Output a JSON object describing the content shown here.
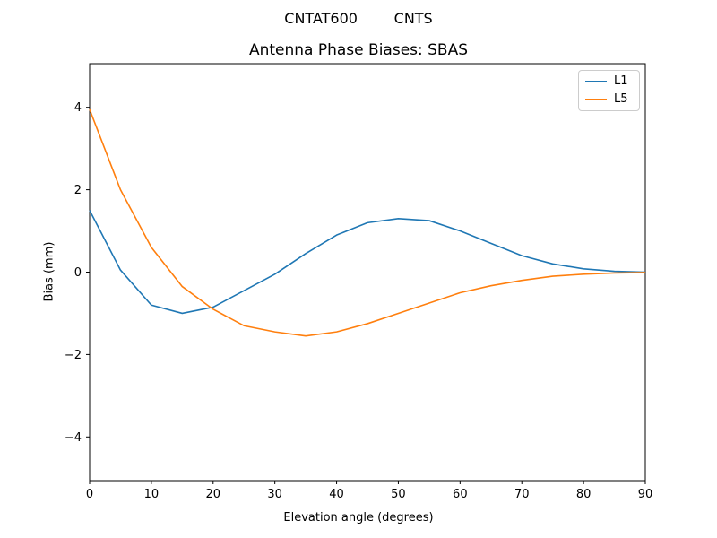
{
  "figure": {
    "suptitle": "CNTAT600        CNTS",
    "background": "#ffffff",
    "spine_color": "#000000"
  },
  "chart_data": {
    "type": "line",
    "title": "Antenna Phase Biases: SBAS",
    "xlabel": "Elevation angle (degrees)",
    "ylabel": "Bias (mm)",
    "xlim": [
      0,
      90
    ],
    "ylim": [
      -5.06,
      5.06
    ],
    "xticks": [
      0,
      10,
      20,
      30,
      40,
      50,
      60,
      70,
      80,
      90
    ],
    "yticks": [
      -4,
      -2,
      0,
      2,
      4
    ],
    "grid": false,
    "legend_position": "upper right",
    "x": [
      0,
      5,
      10,
      15,
      20,
      25,
      30,
      35,
      40,
      45,
      50,
      55,
      60,
      65,
      70,
      75,
      80,
      85,
      90
    ],
    "series": [
      {
        "name": "L1",
        "color": "#1f77b4",
        "values": [
          1.5,
          0.05,
          -0.8,
          -1.0,
          -0.85,
          -0.45,
          -0.05,
          0.45,
          0.9,
          1.2,
          1.3,
          1.25,
          1.0,
          0.7,
          0.4,
          0.2,
          0.08,
          0.02,
          0.0
        ]
      },
      {
        "name": "L5",
        "color": "#ff7f0e",
        "values": [
          3.95,
          2.0,
          0.6,
          -0.35,
          -0.9,
          -1.3,
          -1.45,
          -1.55,
          -1.45,
          -1.25,
          -1.0,
          -0.75,
          -0.5,
          -0.33,
          -0.2,
          -0.1,
          -0.05,
          -0.02,
          -0.01
        ]
      }
    ]
  }
}
